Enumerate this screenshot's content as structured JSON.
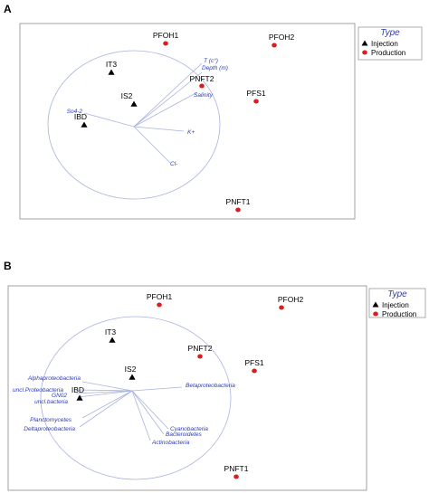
{
  "chart_data": [
    {
      "type": "scatter",
      "panel_label": "A",
      "legend": {
        "title": "Type",
        "entries": [
          {
            "label": "Injection",
            "marker": "triangle",
            "color": "#000000"
          },
          {
            "label": "Production",
            "marker": "circle",
            "color": "#d81e1e"
          }
        ]
      },
      "points": [
        {
          "label": "PFOH1",
          "type": "Production",
          "x": 0.35,
          "y": 0.92
        },
        {
          "label": "PFOH2",
          "type": "Production",
          "x": 1.55,
          "y": 0.9
        },
        {
          "label": "IT3",
          "type": "Injection",
          "x": -0.25,
          "y": 0.6
        },
        {
          "label": "PNFT2",
          "type": "Production",
          "x": 0.75,
          "y": 0.45
        },
        {
          "label": "IS2",
          "type": "Injection",
          "x": 0.0,
          "y": 0.25
        },
        {
          "label": "PFS1",
          "type": "Production",
          "x": 1.35,
          "y": 0.28
        },
        {
          "label": "IBD",
          "type": "Injection",
          "x": -0.55,
          "y": 0.02
        },
        {
          "label": "PNFT1",
          "type": "Production",
          "x": 1.15,
          "y": -0.92
        }
      ],
      "vectors": [
        {
          "label": "T (c°)",
          "x": 0.75,
          "y": 0.7
        },
        {
          "label": "Depth (m)",
          "x": 0.75,
          "y": 0.6
        },
        {
          "label": "Salinity",
          "x": 0.7,
          "y": 0.38
        },
        {
          "label": "So4-2",
          "x": -0.55,
          "y": 0.15
        },
        {
          "label": "K+",
          "x": 0.55,
          "y": -0.05
        },
        {
          "label": "Cl-",
          "x": 0.4,
          "y": -0.4
        }
      ]
    },
    {
      "type": "scatter",
      "panel_label": "B",
      "legend": {
        "title": "Type",
        "entries": [
          {
            "label": "Injection",
            "marker": "triangle",
            "color": "#000000"
          },
          {
            "label": "Production",
            "marker": "circle",
            "color": "#d81e1e"
          }
        ]
      },
      "points": [
        {
          "label": "PFOH1",
          "type": "Production",
          "x": 0.3,
          "y": 0.95
        },
        {
          "label": "PFOH2",
          "type": "Production",
          "x": 1.65,
          "y": 0.92
        },
        {
          "label": "IT3",
          "type": "Injection",
          "x": -0.22,
          "y": 0.56
        },
        {
          "label": "PNFT2",
          "type": "Production",
          "x": 0.75,
          "y": 0.38
        },
        {
          "label": "IS2",
          "type": "Injection",
          "x": 0.0,
          "y": 0.15
        },
        {
          "label": "PFS1",
          "type": "Production",
          "x": 1.35,
          "y": 0.22
        },
        {
          "label": "IBD",
          "type": "Injection",
          "x": -0.58,
          "y": -0.08
        },
        {
          "label": "PNFT1",
          "type": "Production",
          "x": 1.15,
          "y": -0.95
        }
      ],
      "vectors": [
        {
          "label": "Alphaproteobacteria",
          "x": -0.55,
          "y": 0.1
        },
        {
          "label": "uncl.Proteobacteria",
          "x": -0.62,
          "y": 0.01
        },
        {
          "label": "GN02",
          "x": -0.62,
          "y": -0.03
        },
        {
          "label": "uncl.bacteria",
          "x": -0.6,
          "y": -0.07
        },
        {
          "label": "Betaproteobacteria",
          "x": 0.55,
          "y": 0.04
        },
        {
          "label": "Planctomycetes",
          "x": -0.55,
          "y": -0.3
        },
        {
          "label": "Deltaproteobacteria",
          "x": -0.58,
          "y": -0.4
        },
        {
          "label": "Cyanobacteria",
          "x": 0.4,
          "y": -0.42
        },
        {
          "label": "Bacteroidetes",
          "x": 0.35,
          "y": -0.48
        },
        {
          "label": "Actinobacteria",
          "x": 0.2,
          "y": -0.55
        }
      ]
    }
  ]
}
